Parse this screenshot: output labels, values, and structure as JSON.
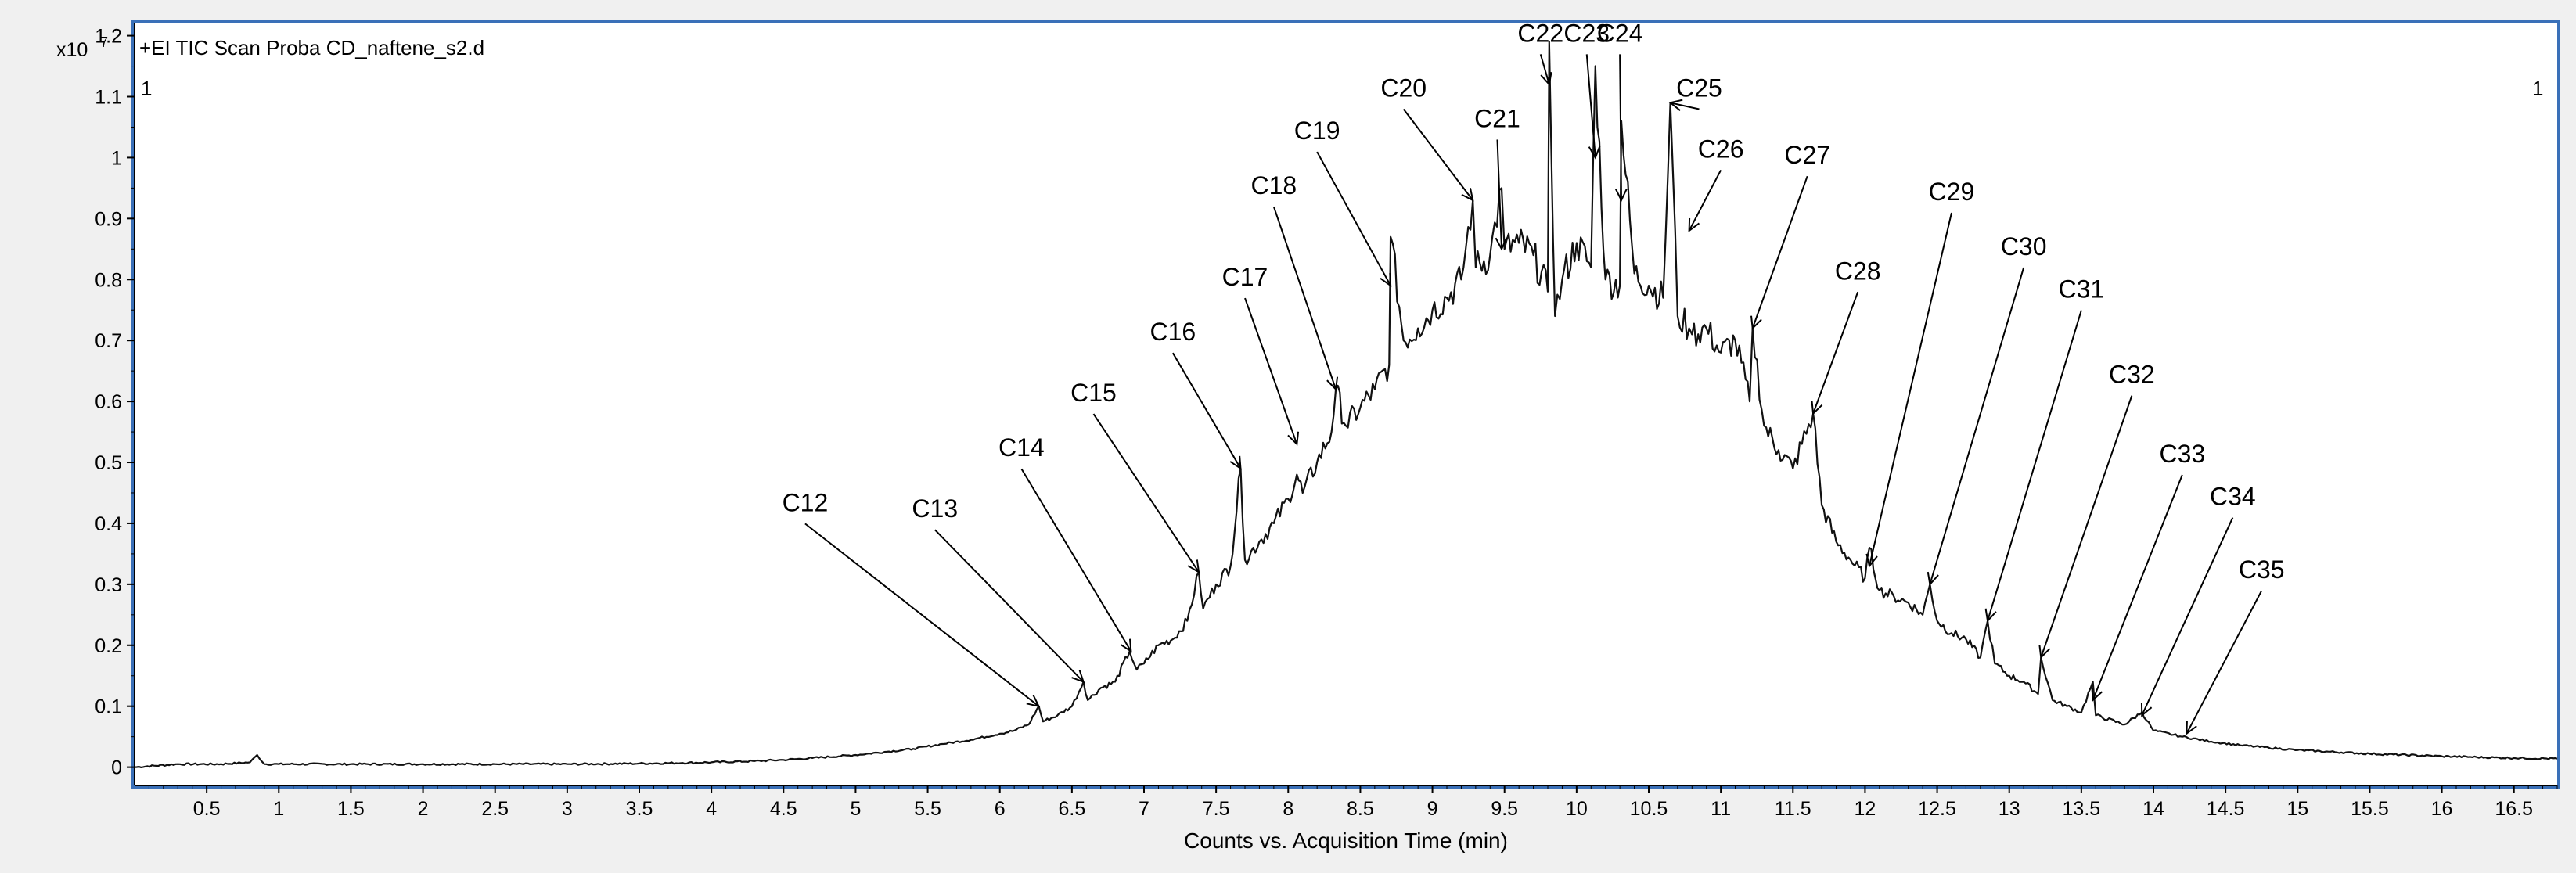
{
  "window": {
    "header": "+EI TIC Scan Proba CD_naftene_s2.d",
    "corner_left": "1",
    "corner_right": "1"
  },
  "colors": {
    "frame": "#3a70b8",
    "background": "#f0f0f0",
    "plot_bg": "#ffffff",
    "trace": "#000000"
  },
  "chart_data": {
    "type": "line",
    "title": "+EI TIC Scan Proba CD_naftene_s2.d",
    "xlabel": "Counts vs. Acquisition Time (min)",
    "ylabel": "",
    "y_multiplier": "x10",
    "y_multiplier_exp": "7",
    "xlim": [
      0,
      16.8
    ],
    "ylim": [
      -0.03,
      1.22
    ],
    "grid": false,
    "x_ticks": [
      0.5,
      1,
      1.5,
      2,
      2.5,
      3,
      3.5,
      4,
      4.5,
      5,
      5.5,
      6,
      6.5,
      7,
      7.5,
      8,
      8.5,
      9,
      9.5,
      10,
      10.5,
      11,
      11.5,
      12,
      12.5,
      13,
      13.5,
      14,
      14.5,
      15,
      15.5,
      16,
      16.5
    ],
    "x_tick_labels": [
      "0.5",
      "1",
      "1.5",
      "2",
      "2.5",
      "3",
      "3.5",
      "4",
      "4.5",
      "5",
      "5.5",
      "6",
      "6.5",
      "7",
      "7.5",
      "8",
      "8.5",
      "9",
      "9.5",
      "10",
      "10.5",
      "11",
      "11.5",
      "12",
      "12.5",
      "13",
      "13.5",
      "14",
      "14.5",
      "15",
      "15.5",
      "16",
      "16.5"
    ],
    "y_ticks": [
      0,
      0.1,
      0.2,
      0.3,
      0.4,
      0.5,
      0.6,
      0.7,
      0.8,
      0.9,
      1,
      1.1,
      1.2
    ],
    "y_tick_labels": [
      "0",
      "0.1",
      "0.2",
      "0.3",
      "0.4",
      "0.5",
      "0.6",
      "0.7",
      "0.8",
      "0.9",
      "1",
      "1.1",
      "1.2"
    ],
    "series": [
      {
        "x": [
          0.0,
          0.3,
          0.6,
          0.8,
          0.85,
          0.9,
          1.0,
          1.5,
          2.0,
          2.5,
          3.0,
          3.5,
          3.8,
          4.0,
          4.3,
          4.5,
          4.7,
          5.0,
          5.2,
          5.4,
          5.6,
          5.8,
          6.0,
          6.1,
          6.2,
          6.27,
          6.3,
          6.4,
          6.5,
          6.58,
          6.61,
          6.7,
          6.8,
          6.9,
          6.95,
          7.0,
          7.1,
          7.2,
          7.3,
          7.38,
          7.41,
          7.5,
          7.6,
          7.67,
          7.7,
          7.8,
          7.9,
          8.0,
          8.06,
          8.1,
          8.2,
          8.3,
          8.33,
          8.4,
          8.5,
          8.6,
          8.7,
          8.71,
          8.8,
          8.9,
          9.0,
          9.1,
          9.2,
          9.28,
          9.3,
          9.4,
          9.48,
          9.5,
          9.6,
          9.7,
          9.8,
          9.81,
          9.85,
          9.9,
          10.0,
          10.1,
          10.13,
          10.2,
          10.3,
          10.31,
          10.4,
          10.5,
          10.6,
          10.65,
          10.7,
          10.78,
          10.8,
          10.9,
          11.0,
          11.1,
          11.2,
          11.22,
          11.3,
          11.4,
          11.5,
          11.64,
          11.7,
          11.8,
          11.9,
          12.0,
          12.03,
          12.1,
          12.2,
          12.3,
          12.4,
          12.45,
          12.5,
          12.6,
          12.7,
          12.8,
          12.85,
          12.9,
          13.0,
          13.1,
          13.2,
          13.22,
          13.3,
          13.4,
          13.5,
          13.58,
          13.6,
          13.8,
          13.92,
          14.0,
          14.2,
          14.4,
          14.6,
          14.8,
          15.0,
          15.5,
          16.0,
          16.5,
          16.8
        ],
        "y": [
          0.0,
          0.005,
          0.005,
          0.008,
          0.02,
          0.005,
          0.005,
          0.005,
          0.005,
          0.005,
          0.005,
          0.006,
          0.007,
          0.008,
          0.01,
          0.012,
          0.015,
          0.02,
          0.025,
          0.03,
          0.038,
          0.045,
          0.055,
          0.06,
          0.07,
          0.1,
          0.075,
          0.085,
          0.1,
          0.14,
          0.11,
          0.13,
          0.14,
          0.19,
          0.16,
          0.17,
          0.2,
          0.21,
          0.24,
          0.32,
          0.26,
          0.3,
          0.33,
          0.49,
          0.34,
          0.37,
          0.4,
          0.44,
          0.48,
          0.45,
          0.5,
          0.55,
          0.62,
          0.56,
          0.59,
          0.62,
          0.66,
          0.87,
          0.7,
          0.72,
          0.75,
          0.77,
          0.8,
          0.93,
          0.82,
          0.84,
          0.95,
          0.85,
          0.86,
          0.84,
          0.78,
          1.19,
          0.74,
          0.8,
          0.86,
          0.82,
          1.15,
          0.8,
          0.79,
          1.06,
          0.81,
          0.79,
          0.77,
          1.09,
          0.74,
          0.72,
          0.71,
          0.72,
          0.68,
          0.7,
          0.6,
          0.72,
          0.56,
          0.52,
          0.49,
          0.58,
          0.43,
          0.37,
          0.34,
          0.31,
          0.36,
          0.29,
          0.28,
          0.27,
          0.25,
          0.3,
          0.24,
          0.22,
          0.21,
          0.18,
          0.24,
          0.17,
          0.15,
          0.14,
          0.12,
          0.18,
          0.11,
          0.1,
          0.09,
          0.14,
          0.085,
          0.07,
          0.09,
          0.06,
          0.05,
          0.042,
          0.036,
          0.032,
          0.028,
          0.022,
          0.018,
          0.015,
          0.014
        ]
      }
    ],
    "annotations": [
      {
        "label": "C12",
        "x": 6.27,
        "y": 0.1,
        "tx": 4.65,
        "ty": 0.42
      },
      {
        "label": "C13",
        "x": 6.58,
        "y": 0.14,
        "tx": 5.55,
        "ty": 0.41
      },
      {
        "label": "C14",
        "x": 6.91,
        "y": 0.19,
        "tx": 6.15,
        "ty": 0.51
      },
      {
        "label": "C15",
        "x": 7.38,
        "y": 0.32,
        "tx": 6.65,
        "ty": 0.6
      },
      {
        "label": "C16",
        "x": 7.67,
        "y": 0.49,
        "tx": 7.2,
        "ty": 0.7
      },
      {
        "label": "C17",
        "x": 8.06,
        "y": 0.53,
        "tx": 7.7,
        "ty": 0.79
      },
      {
        "label": "C18",
        "x": 8.33,
        "y": 0.62,
        "tx": 7.9,
        "ty": 0.94
      },
      {
        "label": "C19",
        "x": 8.71,
        "y": 0.79,
        "tx": 8.2,
        "ty": 1.03
      },
      {
        "label": "C20",
        "x": 9.28,
        "y": 0.93,
        "tx": 8.8,
        "ty": 1.1
      },
      {
        "label": "C21",
        "x": 9.48,
        "y": 0.85,
        "tx": 9.45,
        "ty": 1.05
      },
      {
        "label": "C22",
        "x": 9.81,
        "y": 1.12,
        "tx": 9.75,
        "ty": 1.19
      },
      {
        "label": "C23",
        "x": 10.13,
        "y": 1.0,
        "tx": 10.07,
        "ty": 1.19
      },
      {
        "label": "C24",
        "x": 10.31,
        "y": 0.93,
        "tx": 10.3,
        "ty": 1.19
      },
      {
        "label": "C25",
        "x": 10.65,
        "y": 1.09,
        "tx": 10.85,
        "ty": 1.1
      },
      {
        "label": "C26",
        "x": 10.78,
        "y": 0.88,
        "tx": 11.0,
        "ty": 1.0
      },
      {
        "label": "C27",
        "x": 11.22,
        "y": 0.72,
        "tx": 11.6,
        "ty": 0.99
      },
      {
        "label": "C28",
        "x": 11.64,
        "y": 0.58,
        "tx": 11.95,
        "ty": 0.8
      },
      {
        "label": "C29",
        "x": 12.03,
        "y": 0.33,
        "tx": 12.6,
        "ty": 0.93
      },
      {
        "label": "C30",
        "x": 12.45,
        "y": 0.3,
        "tx": 13.1,
        "ty": 0.84
      },
      {
        "label": "C31",
        "x": 12.85,
        "y": 0.24,
        "tx": 13.5,
        "ty": 0.77
      },
      {
        "label": "C32",
        "x": 13.22,
        "y": 0.18,
        "tx": 13.85,
        "ty": 0.63
      },
      {
        "label": "C33",
        "x": 13.58,
        "y": 0.11,
        "tx": 14.2,
        "ty": 0.5
      },
      {
        "label": "C34",
        "x": 13.92,
        "y": 0.085,
        "tx": 14.55,
        "ty": 0.43
      },
      {
        "label": "C35",
        "x": 14.23,
        "y": 0.055,
        "tx": 14.75,
        "ty": 0.31
      }
    ]
  }
}
